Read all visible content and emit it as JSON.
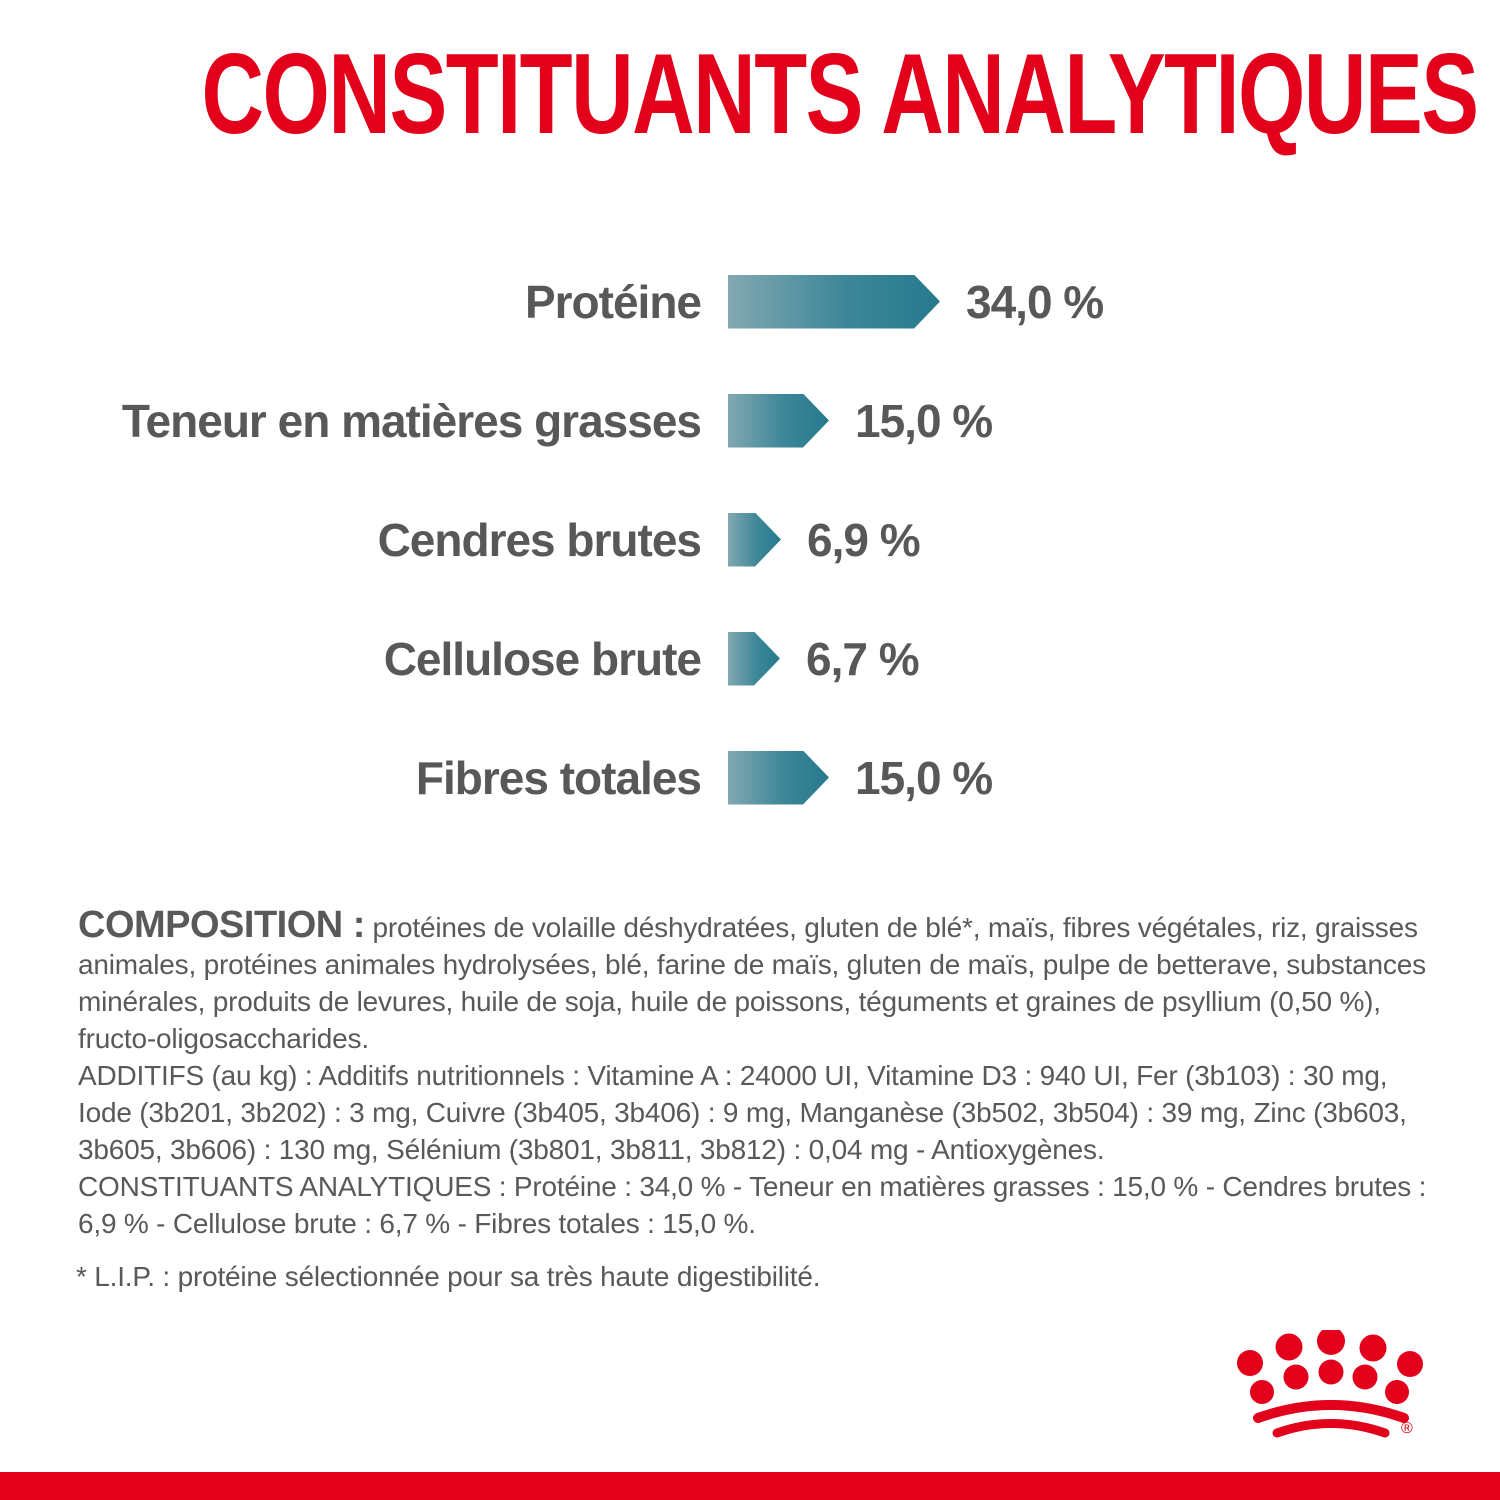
{
  "page": {
    "title": "CONSTITUANTS ANALYTIQUES",
    "colors": {
      "brand_red": "#e2001a",
      "text_gray": "#58595b",
      "bar_teal_light": "#82a8b1",
      "bar_teal_dark": "#26798d"
    }
  },
  "chart_data": {
    "type": "bar",
    "orientation": "horizontal",
    "title": "CONSTITUANTS ANALYTIQUES",
    "unit": "%",
    "categories": [
      "Protéine",
      "Teneur en matières grasses",
      "Cendres brutes",
      "Cellulose brute",
      "Fibres totales"
    ],
    "values": [
      34.0,
      15.0,
      6.9,
      6.7,
      15.0
    ],
    "value_labels": [
      "34,0 %",
      "15,0 %",
      "6,9 %",
      "6,7 %",
      "15,0 %"
    ],
    "xlim": [
      0,
      40
    ],
    "grid": false,
    "legend": false,
    "bar_style": "gradient-teal-arrow"
  },
  "composition": {
    "heading": "COMPOSITION :",
    "body": " protéines de volaille déshydratées, gluten de blé*, maïs, fibres végétales, riz, graisses animales, protéines animales hydrolysées, blé, farine de maïs, gluten de maïs, pulpe de betterave, substances minérales, produits de levures, huile de soja, huile de poissons, téguments et graines de psyllium (0,50 %), fructo-oligosaccharides.",
    "additifs": "ADDITIFS (au kg) : Additifs nutritionnels : Vitamine A : 24000 UI, Vitamine D3 : 940 UI, Fer (3b103) : 30 mg, Iode (3b201, 3b202) : 3 mg, Cuivre (3b405, 3b406) : 9 mg, Manganèse (3b502, 3b504) : 39 mg, Zinc (3b603, 3b605, 3b606) : 130 mg, Sélénium (3b801, 3b811, 3b812) : 0,04 mg - Antioxygènes.",
    "constituants": "CONSTITUANTS ANALYTIQUES : Protéine : 34,0 % - Teneur en matières grasses : 15,0 % - Cendres brutes : 6,9 % - Cellulose brute : 6,7 % - Fibres totales : 15,0 %.",
    "footnote": "* L.I.P. : protéine sélectionnée pour sa très haute digestibilité."
  },
  "logo": {
    "name": "royal-canin-crown",
    "registered_mark": "®"
  }
}
